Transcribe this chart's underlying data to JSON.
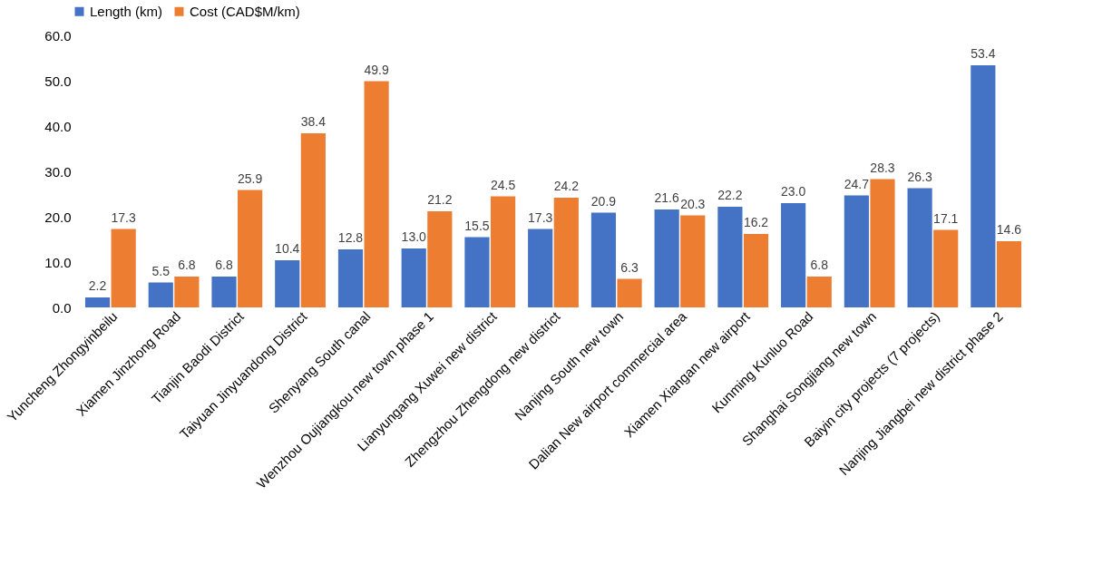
{
  "chart_data": {
    "type": "bar",
    "categories": [
      "Yuncheng Zhongyinbeilu",
      "Xiamen Jinzhong Road",
      "Tianjin Baodi District",
      "Taiyuan Jinyuandong District",
      "Shenyang South canal",
      "Wenzhou Oujiangkou new town phase 1",
      "Lianyungang Xuwei new district",
      "Zhengzhou Zhengdong new district",
      "Nanjing South new town",
      "Dalian New airport commercial area",
      "Xiamen Xiangan new airport",
      "Kunming Kunluo Road",
      "Shanghai Songjiang new town",
      "Baiyin city projects (7 projects)",
      "Nanjing Jiangbei new district phase 2"
    ],
    "series": [
      {
        "name": "Length (km)",
        "color": "#4472c4",
        "values": [
          2.2,
          5.5,
          6.8,
          10.4,
          12.8,
          13.0,
          15.5,
          17.3,
          20.9,
          21.6,
          22.2,
          23.0,
          24.7,
          26.3,
          53.4
        ],
        "value_labels": [
          "2.2",
          "5.5",
          "6.8",
          "10.4",
          "12.8",
          "13.0",
          "15.5",
          "17.3",
          "20.9",
          "21.6",
          "22.2",
          "23.0",
          "24.7",
          "26.3",
          "53.4"
        ]
      },
      {
        "name": "Cost (CAD$M/km)",
        "color": "#ed7d31",
        "values": [
          17.3,
          6.8,
          25.9,
          38.4,
          49.9,
          21.2,
          24.5,
          24.2,
          6.3,
          20.3,
          16.2,
          6.8,
          28.3,
          17.1,
          14.6
        ],
        "value_labels": [
          "17.3",
          "6.8",
          "25.9",
          "38.4",
          "49.9",
          "21.2",
          "24.5",
          "24.2",
          "6.3",
          "20.3",
          "16.2",
          "6.8",
          "28.3",
          "17.1",
          "14.6"
        ]
      }
    ],
    "ylim": [
      0,
      60
    ],
    "yticks": [
      {
        "value": 0,
        "label": "0.0"
      },
      {
        "value": 10,
        "label": "10.0"
      },
      {
        "value": 20,
        "label": "20.0"
      },
      {
        "value": 30,
        "label": "30.0"
      },
      {
        "value": 40,
        "label": "40.0"
      },
      {
        "value": 50,
        "label": "50.0"
      },
      {
        "value": 60,
        "label": "60.0"
      }
    ],
    "legend": "top",
    "grid": false
  }
}
